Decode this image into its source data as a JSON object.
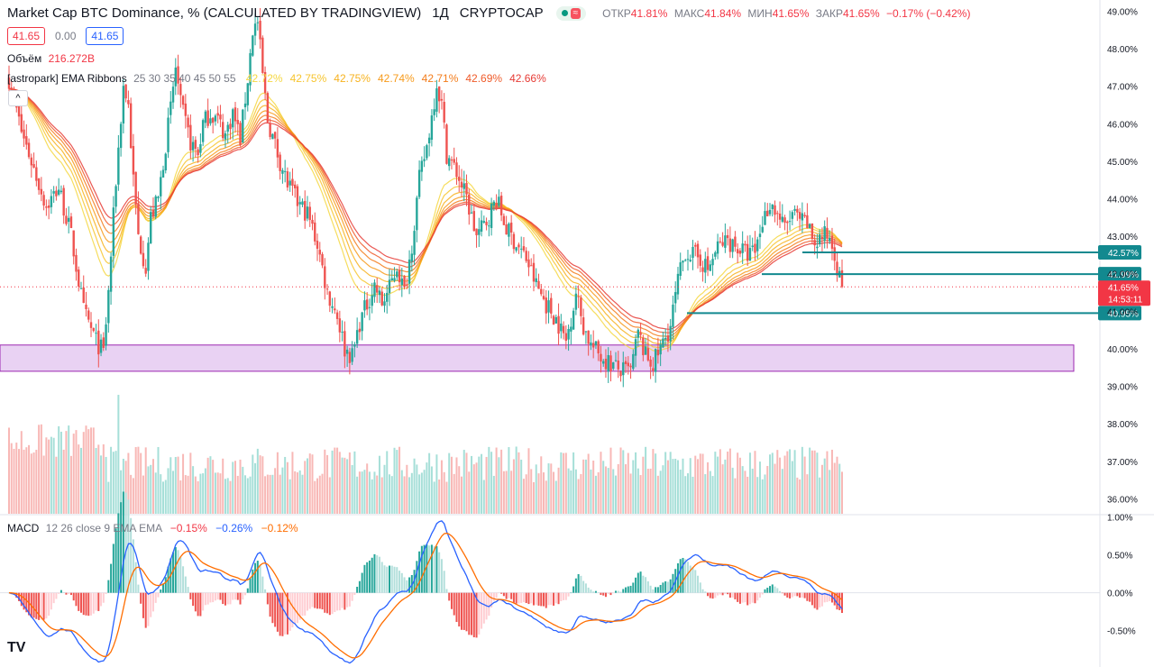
{
  "header": {
    "title": "Market Cap BTC Dominance, % (CALCULATED BY TRADINGVIEW)",
    "timeframe": "1Д",
    "exchange": "CRYPTOCAP",
    "wave_icon": "≈",
    "open_label": "ОТКР",
    "open": "41.81%",
    "high_label": "МАКС",
    "high": "41.84%",
    "low_label": "МИН",
    "low": "41.65%",
    "close_label": "ЗАКР",
    "close": "41.65%",
    "change": "−0.17% (−0.42%)"
  },
  "price_boxes": {
    "sell": "41.65",
    "spread": "0.00",
    "buy": "41.65"
  },
  "volume_legend": {
    "name": "Объём",
    "value": "216.272B"
  },
  "ema_legend": {
    "name": "[astropark] EMA Ribbons",
    "params": "25 30 35 40 45 50 55",
    "values": [
      "42.72%",
      "42.75%",
      "42.75%",
      "42.74%",
      "42.71%",
      "42.69%",
      "42.66%"
    ],
    "colors": [
      "#f5d742",
      "#f7c530",
      "#f7b21e",
      "#f79a1a",
      "#f37d1c",
      "#ef5b2a",
      "#e63b35"
    ]
  },
  "macd_legend": {
    "name": "MACD",
    "params": "12 26 close 9 EMA EMA",
    "hist": "−0.15%",
    "macd": "−0.26%",
    "signal": "−0.12%",
    "colors": {
      "hist": "#f23645",
      "macd": "#2962ff",
      "signal": "#ff6d00"
    }
  },
  "logo": "TV",
  "colors": {
    "up": "#26a69a",
    "down": "#ef5350",
    "zone_fill": "#e9d2f3",
    "zone_stroke": "#9c27b0",
    "level": "#12898f",
    "price_tag": "#f23645"
  },
  "chart_data": {
    "type": "candlestick",
    "title": "Market Cap BTC Dominance, % (CALCULATED BY TRADINGVIEW)",
    "price_axis": {
      "ticks": [
        "49.00%",
        "48.00%",
        "47.00%",
        "46.00%",
        "45.00%",
        "44.00%",
        "43.00%",
        "42.00%",
        "41.00%",
        "40.00%",
        "39.00%",
        "38.00%",
        "37.00%",
        "36.00%"
      ],
      "range": [
        35.6,
        49.3
      ]
    },
    "price_path_anchors": [
      [
        0,
        47.2
      ],
      [
        5,
        45.8
      ],
      [
        10,
        44.8
      ],
      [
        15,
        43.8
      ],
      [
        20,
        44.3
      ],
      [
        25,
        43.0
      ],
      [
        30,
        41.0
      ],
      [
        35,
        40.2
      ],
      [
        38,
        39.9
      ],
      [
        40,
        41.5
      ],
      [
        43,
        44.5
      ],
      [
        46,
        47.0
      ],
      [
        48,
        46.5
      ],
      [
        50,
        44.5
      ],
      [
        52,
        43.0
      ],
      [
        55,
        42.2
      ],
      [
        57,
        43.5
      ],
      [
        60,
        44.0
      ],
      [
        62,
        45.0
      ],
      [
        65,
        46.4
      ],
      [
        67,
        47.5
      ],
      [
        69,
        46.5
      ],
      [
        71,
        46.0
      ],
      [
        73,
        45.5
      ],
      [
        76,
        45.2
      ],
      [
        78,
        46.0
      ],
      [
        81,
        46.3
      ],
      [
        84,
        46.1
      ],
      [
        87,
        45.7
      ],
      [
        90,
        46.3
      ],
      [
        93,
        45.6
      ],
      [
        96,
        47.2
      ],
      [
        98,
        48.5
      ],
      [
        100,
        48.7
      ],
      [
        102,
        47.3
      ],
      [
        104,
        46.1
      ],
      [
        108,
        45.2
      ],
      [
        112,
        44.4
      ],
      [
        116,
        43.9
      ],
      [
        120,
        43.6
      ],
      [
        124,
        42.8
      ],
      [
        128,
        41.5
      ],
      [
        132,
        40.9
      ],
      [
        135,
        40.0
      ],
      [
        138,
        39.8
      ],
      [
        141,
        40.7
      ],
      [
        144,
        41.2
      ],
      [
        147,
        41.7
      ],
      [
        150,
        41.2
      ],
      [
        153,
        41.6
      ],
      [
        156,
        42.2
      ],
      [
        159,
        41.5
      ],
      [
        162,
        42.8
      ],
      [
        165,
        44.5
      ],
      [
        168,
        45.4
      ],
      [
        170,
        46.2
      ],
      [
        172,
        47.1
      ],
      [
        174,
        46.5
      ],
      [
        176,
        45.2
      ],
      [
        180,
        44.7
      ],
      [
        184,
        44.0
      ],
      [
        188,
        43.0
      ],
      [
        192,
        43.4
      ],
      [
        196,
        44.0
      ],
      [
        200,
        43.2
      ],
      [
        204,
        42.8
      ],
      [
        208,
        42.4
      ],
      [
        212,
        41.7
      ],
      [
        216,
        41.2
      ],
      [
        220,
        40.8
      ],
      [
        224,
        40.2
      ],
      [
        228,
        41.5
      ],
      [
        231,
        40.6
      ],
      [
        234,
        40.1
      ],
      [
        238,
        39.8
      ],
      [
        242,
        39.6
      ],
      [
        246,
        39.4
      ],
      [
        250,
        39.4
      ],
      [
        253,
        40.4
      ],
      [
        256,
        39.8
      ],
      [
        259,
        39.6
      ],
      [
        262,
        40.0
      ],
      [
        266,
        40.6
      ],
      [
        269,
        41.8
      ],
      [
        272,
        42.6
      ],
      [
        275,
        42.5
      ],
      [
        278,
        42.4
      ],
      [
        281,
        42.1
      ],
      [
        285,
        42.7
      ],
      [
        289,
        42.9
      ],
      [
        293,
        42.7
      ],
      [
        297,
        42.5
      ],
      [
        300,
        42.6
      ],
      [
        303,
        43.4
      ],
      [
        306,
        43.9
      ],
      [
        309,
        43.6
      ],
      [
        312,
        43.2
      ],
      [
        315,
        43.6
      ],
      [
        318,
        43.4
      ],
      [
        321,
        43.3
      ],
      [
        324,
        42.8
      ],
      [
        327,
        43.0
      ],
      [
        330,
        43.0
      ],
      [
        332,
        42.6
      ],
      [
        334,
        41.85
      ],
      [
        335,
        41.65
      ]
    ],
    "ema_ribbon_periods": [
      25,
      30,
      35,
      40,
      45,
      50,
      55
    ],
    "horizontal_levels": [
      {
        "value": 42.57,
        "label": "42.57%"
      },
      {
        "value": 41.99,
        "label": "41.99%"
      },
      {
        "value": 40.95,
        "label": "40.95%"
      }
    ],
    "current_price": {
      "value": 41.65,
      "label": "41.65%",
      "countdown": "14:53:11"
    },
    "support_zone": {
      "from": 39.4,
      "to": 40.1
    },
    "volume": {
      "legend": "Объём",
      "last": "216.272B"
    },
    "macd": {
      "params": "12 26 close 9 EMA EMA",
      "axis_ticks": [
        "1.00%",
        "0.50%",
        "0.00%",
        "-0.50%"
      ],
      "range": [
        -0.98,
        1.02
      ],
      "last_hist": -0.15,
      "last_macd": -0.26,
      "last_signal": -0.12
    }
  }
}
